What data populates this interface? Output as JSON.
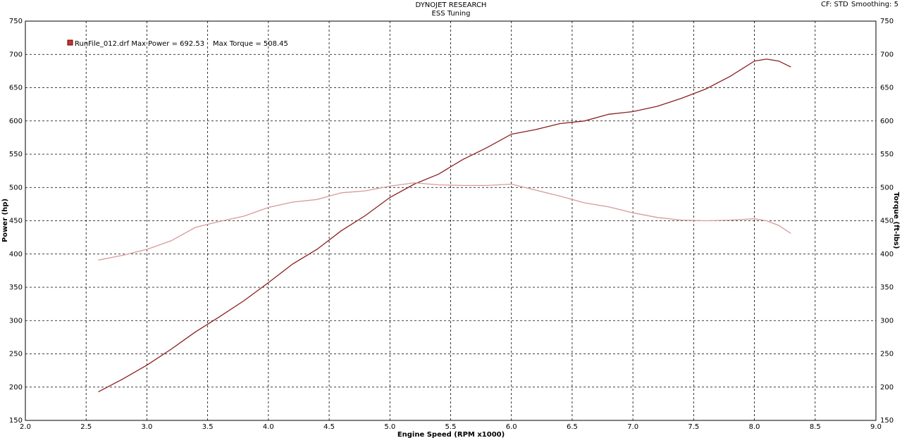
{
  "chart_data": {
    "type": "line",
    "title": "DYNOJET RESEARCH",
    "subtitle": "ESS Tuning",
    "corner_note": [
      "CF: STD",
      "Smoothing: 5"
    ],
    "legend_text": [
      "RunFile_012.drf Max Power = 692.53",
      "Max Torque = 508.45"
    ],
    "xlabel": "Engine Speed (RPM x1000)",
    "ylabel": "Power (hp)",
    "y2label": "Torque (ft-lbs)",
    "x": [
      2.6,
      2.8,
      3.0,
      3.2,
      3.4,
      3.6,
      3.8,
      4.0,
      4.2,
      4.4,
      4.6,
      4.8,
      5.0,
      5.2,
      5.4,
      5.6,
      5.8,
      6.0,
      6.2,
      6.4,
      6.6,
      6.8,
      7.0,
      7.2,
      7.4,
      7.6,
      7.8,
      8.0,
      8.1,
      8.2,
      8.3
    ],
    "series": [
      {
        "color": "#8b1f1f",
        "values": [
          193,
          212,
          233,
          257,
          283,
          306,
          330,
          357,
          385,
          407,
          435,
          458,
          485,
          505,
          520,
          542,
          560,
          580,
          587,
          596,
          600,
          610,
          614,
          622,
          634,
          648,
          667,
          690,
          693,
          690,
          681
        ]
      },
      {
        "color": "#d89a9a",
        "axis": "y2",
        "values": [
          391,
          398,
          407,
          420,
          440,
          449,
          457,
          470,
          478,
          482,
          492,
          495,
          502,
          507,
          504,
          503,
          503,
          505,
          496,
          487,
          477,
          471,
          462,
          455,
          451,
          450,
          451,
          453,
          450,
          443,
          431
        ]
      }
    ],
    "xlim": [
      2,
      9
    ],
    "xticks": [
      {
        "value": 2,
        "label": "2.0"
      },
      2.5,
      {
        "value": 3,
        "label": "3.0"
      },
      3.5,
      {
        "value": 4,
        "label": "4.0"
      },
      4.5,
      {
        "value": 5,
        "label": "5.0"
      },
      5.5,
      {
        "value": 6,
        "label": "6.0"
      },
      6.5,
      {
        "value": 7,
        "label": "7.0"
      },
      7.5,
      {
        "value": 8,
        "label": "8.0"
      },
      8.5,
      {
        "value": 9,
        "label": "9.0"
      }
    ],
    "ylim": [
      150,
      750
    ],
    "yticks": [
      150,
      200,
      250,
      300,
      350,
      400,
      450,
      500,
      550,
      600,
      650,
      700,
      750
    ],
    "y2lim": [
      150,
      750
    ],
    "y2ticks": [
      150,
      200,
      250,
      300,
      350,
      400,
      450,
      500,
      550,
      600,
      650,
      700,
      750
    ],
    "grid": true
  }
}
